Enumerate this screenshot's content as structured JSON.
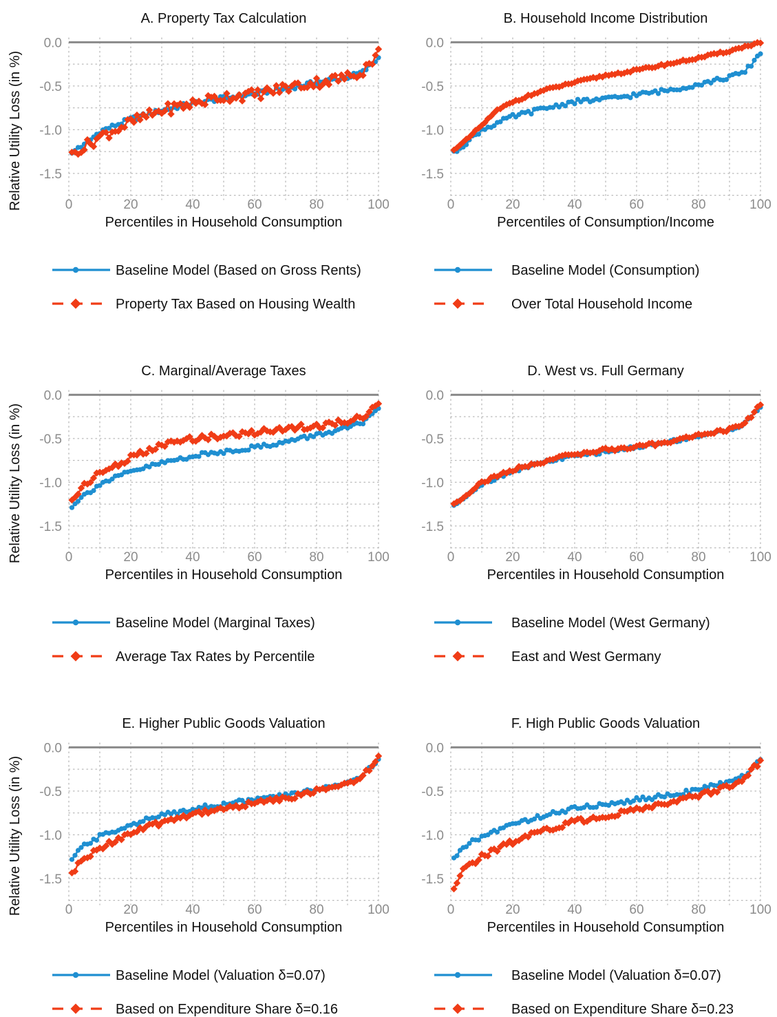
{
  "colors": {
    "baseline": "#1f8fd1",
    "alternative": "#f03c16",
    "zero_line": "#8a8a8a",
    "grid": "#b8b8b8",
    "tick_text": "#8c8c8c"
  },
  "chart_data": [
    {
      "type": "line",
      "panel": "A",
      "title": "A. Property Tax Calculation",
      "xlabel": "Percentiles in Household Consumption",
      "ylabel": "Relative Utility Loss (in %)",
      "xlim": [
        0,
        100
      ],
      "ylim": [
        -1.8,
        0.05
      ],
      "xticks": [
        0,
        20,
        40,
        60,
        80,
        100
      ],
      "yticks": [
        0.0,
        -0.5,
        -1.0,
        -1.5
      ],
      "ytick_labels": [
        "0.0",
        "-0.5",
        "-1.0",
        "-1.5"
      ],
      "grid": "dotted",
      "legend_position": "bottom",
      "series": [
        {
          "name": "Baseline Model (Based on Gross Rents)",
          "style": "solid-dot",
          "anchors": [
            [
              1,
              -1.28
            ],
            [
              3,
              -1.2
            ],
            [
              5,
              -1.18
            ],
            [
              10,
              -1.02
            ],
            [
              20,
              -0.88
            ],
            [
              30,
              -0.78
            ],
            [
              40,
              -0.7
            ],
            [
              50,
              -0.64
            ],
            [
              60,
              -0.59
            ],
            [
              70,
              -0.53
            ],
            [
              80,
              -0.46
            ],
            [
              90,
              -0.4
            ],
            [
              95,
              -0.34
            ],
            [
              100,
              -0.18
            ]
          ],
          "noise": 0.025
        },
        {
          "name": "Property Tax Based on Housing Wealth",
          "style": "dash-diamond",
          "anchors": [
            [
              1,
              -1.3
            ],
            [
              3,
              -1.22
            ],
            [
              5,
              -1.2
            ],
            [
              10,
              -1.08
            ],
            [
              20,
              -0.92
            ],
            [
              30,
              -0.78
            ],
            [
              40,
              -0.7
            ],
            [
              50,
              -0.62
            ],
            [
              60,
              -0.6
            ],
            [
              70,
              -0.52
            ],
            [
              80,
              -0.46
            ],
            [
              90,
              -0.4
            ],
            [
              95,
              -0.32
            ],
            [
              100,
              -0.12
            ]
          ],
          "noise": 0.065
        }
      ]
    },
    {
      "type": "line",
      "panel": "B",
      "title": "B. Household Income Distribution",
      "xlabel": "Percentiles of Consumption/Income",
      "ylabel": "",
      "xlim": [
        0,
        100
      ],
      "ylim": [
        -1.8,
        0.05
      ],
      "xticks": [
        0,
        20,
        40,
        60,
        80,
        100
      ],
      "yticks": [
        0.0,
        -0.5,
        -1.0,
        -1.5
      ],
      "ytick_labels": [
        "0.0",
        "-0.5",
        "-1.0",
        "-1.5"
      ],
      "grid": "dotted",
      "legend_position": "bottom",
      "series": [
        {
          "name": "Baseline Model (Consumption)",
          "style": "solid-dot",
          "anchors": [
            [
              1,
              -1.27
            ],
            [
              3,
              -1.2
            ],
            [
              5,
              -1.15
            ],
            [
              10,
              -1.0
            ],
            [
              20,
              -0.85
            ],
            [
              30,
              -0.76
            ],
            [
              40,
              -0.68
            ],
            [
              50,
              -0.65
            ],
            [
              60,
              -0.6
            ],
            [
              70,
              -0.55
            ],
            [
              80,
              -0.48
            ],
            [
              90,
              -0.4
            ],
            [
              95,
              -0.34
            ],
            [
              100,
              -0.12
            ]
          ],
          "noise": 0.025
        },
        {
          "name": "Over Total Household Income",
          "style": "dash-diamond",
          "anchors": [
            [
              1,
              -1.22
            ],
            [
              3,
              -1.18
            ],
            [
              5,
              -1.12
            ],
            [
              10,
              -0.95
            ],
            [
              15,
              -0.78
            ],
            [
              20,
              -0.68
            ],
            [
              30,
              -0.55
            ],
            [
              40,
              -0.46
            ],
            [
              50,
              -0.38
            ],
            [
              60,
              -0.32
            ],
            [
              70,
              -0.25
            ],
            [
              80,
              -0.18
            ],
            [
              90,
              -0.1
            ],
            [
              100,
              0.0
            ]
          ],
          "noise": 0.012
        }
      ]
    },
    {
      "type": "line",
      "panel": "C",
      "title": "C. Marginal/Average Taxes",
      "xlabel": "Percentiles in Household Consumption",
      "ylabel": "Relative Utility Loss (in %)",
      "xlim": [
        0,
        100
      ],
      "ylim": [
        -1.8,
        0.05
      ],
      "xticks": [
        0,
        20,
        40,
        60,
        80,
        100
      ],
      "yticks": [
        0.0,
        -0.5,
        -1.0,
        -1.5
      ],
      "ytick_labels": [
        "0.0",
        "-0.5",
        "-1.0",
        "-1.5"
      ],
      "grid": "dotted",
      "legend_position": "bottom",
      "series": [
        {
          "name": "Baseline Model (Marginal Taxes)",
          "style": "solid-dot",
          "anchors": [
            [
              1,
              -1.27
            ],
            [
              3,
              -1.2
            ],
            [
              5,
              -1.15
            ],
            [
              10,
              -1.02
            ],
            [
              20,
              -0.88
            ],
            [
              30,
              -0.78
            ],
            [
              40,
              -0.7
            ],
            [
              50,
              -0.65
            ],
            [
              60,
              -0.6
            ],
            [
              70,
              -0.54
            ],
            [
              80,
              -0.46
            ],
            [
              90,
              -0.38
            ],
            [
              95,
              -0.32
            ],
            [
              100,
              -0.18
            ]
          ],
          "noise": 0.025
        },
        {
          "name": "Average Tax Rates by Percentile",
          "style": "dash-diamond",
          "anchors": [
            [
              1,
              -1.2
            ],
            [
              3,
              -1.12
            ],
            [
              5,
              -1.02
            ],
            [
              10,
              -0.9
            ],
            [
              20,
              -0.72
            ],
            [
              30,
              -0.58
            ],
            [
              40,
              -0.5
            ],
            [
              50,
              -0.47
            ],
            [
              60,
              -0.43
            ],
            [
              70,
              -0.38
            ],
            [
              80,
              -0.36
            ],
            [
              90,
              -0.3
            ],
            [
              95,
              -0.25
            ],
            [
              100,
              -0.08
            ]
          ],
          "noise": 0.035
        }
      ]
    },
    {
      "type": "line",
      "panel": "D",
      "title": "D. West vs. Full Germany",
      "xlabel": "Percentiles in Household Consumption",
      "ylabel": "",
      "xlim": [
        0,
        100
      ],
      "ylim": [
        -1.8,
        0.05
      ],
      "xticks": [
        0,
        20,
        40,
        60,
        80,
        100
      ],
      "yticks": [
        0.0,
        -0.5,
        -1.0,
        -1.5
      ],
      "ytick_labels": [
        "0.0",
        "-0.5",
        "-1.0",
        "-1.5"
      ],
      "grid": "dotted",
      "legend_position": "bottom",
      "series": [
        {
          "name": "Baseline Model (West Germany)",
          "style": "solid-dot",
          "anchors": [
            [
              1,
              -1.28
            ],
            [
              3,
              -1.2
            ],
            [
              5,
              -1.15
            ],
            [
              10,
              -1.02
            ],
            [
              20,
              -0.87
            ],
            [
              30,
              -0.77
            ],
            [
              40,
              -0.7
            ],
            [
              50,
              -0.65
            ],
            [
              60,
              -0.6
            ],
            [
              70,
              -0.54
            ],
            [
              80,
              -0.47
            ],
            [
              90,
              -0.4
            ],
            [
              95,
              -0.33
            ],
            [
              100,
              -0.14
            ]
          ],
          "noise": 0.02
        },
        {
          "name": "East and West Germany",
          "style": "dash-diamond",
          "anchors": [
            [
              1,
              -1.25
            ],
            [
              3,
              -1.2
            ],
            [
              5,
              -1.14
            ],
            [
              10,
              -1.0
            ],
            [
              20,
              -0.86
            ],
            [
              30,
              -0.76
            ],
            [
              40,
              -0.68
            ],
            [
              50,
              -0.63
            ],
            [
              60,
              -0.6
            ],
            [
              70,
              -0.54
            ],
            [
              80,
              -0.46
            ],
            [
              90,
              -0.4
            ],
            [
              95,
              -0.32
            ],
            [
              100,
              -0.12
            ]
          ],
          "noise": 0.02
        }
      ]
    },
    {
      "type": "line",
      "panel": "E",
      "title": "E. Higher Public Goods Valuation",
      "xlabel": "Percentiles in Household Consumption",
      "ylabel": "Relative Utility Loss (in %)",
      "xlim": [
        0,
        100
      ],
      "ylim": [
        -1.8,
        0.05
      ],
      "xticks": [
        0,
        20,
        40,
        60,
        80,
        100
      ],
      "yticks": [
        0.0,
        -0.5,
        -1.0,
        -1.5
      ],
      "ytick_labels": [
        "0.0",
        "-0.5",
        "-1.0",
        "-1.5"
      ],
      "grid": "dotted",
      "legend_position": "bottom",
      "series": [
        {
          "name": "Baseline Model (Valuation δ=0.07)",
          "style": "solid-dot",
          "anchors": [
            [
              1,
              -1.28
            ],
            [
              3,
              -1.2
            ],
            [
              5,
              -1.12
            ],
            [
              10,
              -1.02
            ],
            [
              20,
              -0.88
            ],
            [
              30,
              -0.78
            ],
            [
              40,
              -0.7
            ],
            [
              50,
              -0.65
            ],
            [
              60,
              -0.6
            ],
            [
              70,
              -0.55
            ],
            [
              80,
              -0.48
            ],
            [
              90,
              -0.4
            ],
            [
              95,
              -0.32
            ],
            [
              100,
              -0.15
            ]
          ],
          "noise": 0.025
        },
        {
          "name": "Based on Expenditure Share δ=0.16",
          "style": "dash-diamond",
          "anchors": [
            [
              1,
              -1.45
            ],
            [
              3,
              -1.35
            ],
            [
              5,
              -1.28
            ],
            [
              10,
              -1.15
            ],
            [
              20,
              -0.98
            ],
            [
              30,
              -0.86
            ],
            [
              40,
              -0.76
            ],
            [
              50,
              -0.7
            ],
            [
              60,
              -0.64
            ],
            [
              70,
              -0.58
            ],
            [
              80,
              -0.5
            ],
            [
              90,
              -0.42
            ],
            [
              95,
              -0.32
            ],
            [
              100,
              -0.12
            ]
          ],
          "noise": 0.03
        }
      ]
    },
    {
      "type": "line",
      "panel": "F",
      "title": "F. High Public Goods Valuation",
      "xlabel": "Percentiles in Household Consumption",
      "ylabel": "",
      "xlim": [
        0,
        100
      ],
      "ylim": [
        -1.8,
        0.05
      ],
      "xticks": [
        0,
        20,
        40,
        60,
        80,
        100
      ],
      "yticks": [
        0.0,
        -0.5,
        -1.0,
        -1.5
      ],
      "ytick_labels": [
        "0.0",
        "-0.5",
        "-1.0",
        "-1.5"
      ],
      "grid": "dotted",
      "legend_position": "bottom",
      "series": [
        {
          "name": "Baseline Model (Valuation δ=0.07)",
          "style": "solid-dot",
          "anchors": [
            [
              1,
              -1.28
            ],
            [
              3,
              -1.2
            ],
            [
              5,
              -1.12
            ],
            [
              10,
              -1.02
            ],
            [
              20,
              -0.88
            ],
            [
              30,
              -0.78
            ],
            [
              40,
              -0.7
            ],
            [
              50,
              -0.65
            ],
            [
              60,
              -0.6
            ],
            [
              70,
              -0.55
            ],
            [
              80,
              -0.48
            ],
            [
              90,
              -0.4
            ],
            [
              95,
              -0.32
            ],
            [
              100,
              -0.12
            ]
          ],
          "noise": 0.025
        },
        {
          "name": "Based on Expenditure Share δ=0.23",
          "style": "dash-diamond",
          "anchors": [
            [
              1,
              -1.62
            ],
            [
              3,
              -1.45
            ],
            [
              5,
              -1.38
            ],
            [
              10,
              -1.25
            ],
            [
              20,
              -1.08
            ],
            [
              30,
              -0.95
            ],
            [
              40,
              -0.85
            ],
            [
              50,
              -0.78
            ],
            [
              60,
              -0.72
            ],
            [
              70,
              -0.64
            ],
            [
              80,
              -0.55
            ],
            [
              90,
              -0.45
            ],
            [
              95,
              -0.36
            ],
            [
              100,
              -0.15
            ]
          ],
          "noise": 0.03
        }
      ]
    }
  ]
}
